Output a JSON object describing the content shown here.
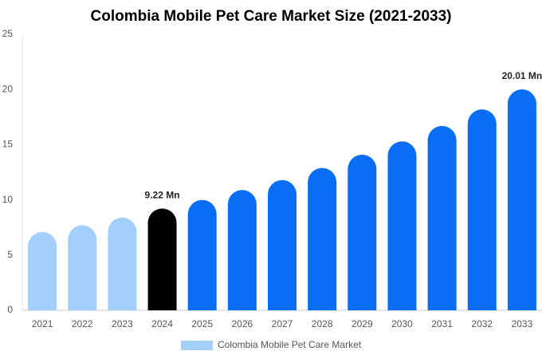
{
  "chart_data": {
    "type": "bar",
    "title": "Colombia Mobile Pet Care Market Size (2021-2033)",
    "categories": [
      "2021",
      "2022",
      "2023",
      "2024",
      "2025",
      "2026",
      "2027",
      "2028",
      "2029",
      "2030",
      "2031",
      "2032",
      "2033"
    ],
    "series": [
      {
        "name": "Colombia Mobile Pet Care Market",
        "color": "#a3cffd",
        "values": [
          7.1,
          7.7,
          8.4,
          9.22,
          10.0,
          10.9,
          11.8,
          12.9,
          14.1,
          15.3,
          16.7,
          18.2,
          20.01
        ],
        "value_labels": [
          null,
          null,
          null,
          "9.22 Mn",
          null,
          null,
          null,
          null,
          null,
          null,
          null,
          null,
          "20.01 Mn"
        ],
        "colors": [
          "#a3cffd",
          "#a3cffd",
          "#a3cffd",
          "#000000",
          "#0a6ef5",
          "#0a6ef5",
          "#0a6ef5",
          "#0a6ef5",
          "#0a6ef5",
          "#0a6ef5",
          "#0a6ef5",
          "#0a6ef5",
          "#0a6ef5"
        ]
      }
    ],
    "ylim": [
      0,
      25
    ],
    "yticks": [
      0,
      5,
      10,
      15,
      20,
      25
    ],
    "grid": false
  }
}
